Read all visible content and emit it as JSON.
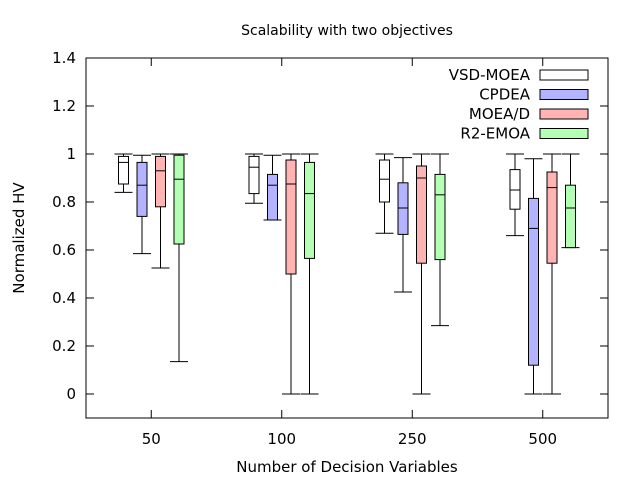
{
  "chart_data": {
    "type": "boxplot",
    "title": "Scalability with two objectives",
    "xlabel": "Number of Decision Variables",
    "ylabel": "Normalized HV",
    "ylim": [
      -0.1,
      1.4
    ],
    "yticks": [
      "0",
      "0.2",
      "0.4",
      "0.6",
      "0.8",
      "1",
      "1.2",
      "1.4"
    ],
    "ytick_values": [
      0,
      0.2,
      0.4,
      0.6,
      0.8,
      1,
      1.2,
      1.4
    ],
    "categories": [
      "50",
      "100",
      "250",
      "500"
    ],
    "legend_position": "top-right",
    "series": [
      {
        "name": "VSD-MOEA",
        "color": "#ffffff",
        "boxes": [
          {
            "min": 0.84,
            "q1": 0.875,
            "median": 0.965,
            "q3": 0.99,
            "max": 1.0
          },
          {
            "min": 0.795,
            "q1": 0.835,
            "median": 0.945,
            "q3": 0.99,
            "max": 1.0
          },
          {
            "min": 0.67,
            "q1": 0.8,
            "median": 0.895,
            "q3": 0.975,
            "max": 1.0
          },
          {
            "min": 0.66,
            "q1": 0.77,
            "median": 0.85,
            "q3": 0.935,
            "max": 1.0
          }
        ]
      },
      {
        "name": "CPDEA",
        "color": "#b3b3ff",
        "boxes": [
          {
            "min": 0.585,
            "q1": 0.74,
            "median": 0.87,
            "q3": 0.965,
            "max": 0.995
          },
          {
            "min": 0.725,
            "q1": 0.725,
            "median": 0.87,
            "q3": 0.915,
            "max": 0.995
          },
          {
            "min": 0.425,
            "q1": 0.665,
            "median": 0.775,
            "q3": 0.88,
            "max": 0.985
          },
          {
            "min": 0.0,
            "q1": 0.12,
            "median": 0.69,
            "q3": 0.815,
            "max": 0.98
          }
        ]
      },
      {
        "name": "MOEA/D",
        "color": "#ffb3b3",
        "boxes": [
          {
            "min": 0.525,
            "q1": 0.78,
            "median": 0.93,
            "q3": 0.99,
            "max": 1.0
          },
          {
            "min": 0.0,
            "q1": 0.5,
            "median": 0.875,
            "q3": 0.975,
            "max": 1.0
          },
          {
            "min": 0.0,
            "q1": 0.545,
            "median": 0.9,
            "q3": 0.95,
            "max": 1.0
          },
          {
            "min": 0.0,
            "q1": 0.545,
            "median": 0.86,
            "q3": 0.925,
            "max": 1.0
          }
        ]
      },
      {
        "name": "R2-EMOA",
        "color": "#b3ffb3",
        "boxes": [
          {
            "min": 0.135,
            "q1": 0.625,
            "median": 0.895,
            "q3": 0.995,
            "max": 1.0
          },
          {
            "min": 0.0,
            "q1": 0.565,
            "median": 0.835,
            "q3": 0.965,
            "max": 1.0
          },
          {
            "min": 0.285,
            "q1": 0.56,
            "median": 0.83,
            "q3": 0.915,
            "max": 1.0
          },
          {
            "min": 0.61,
            "q1": 0.61,
            "median": 0.775,
            "q3": 0.87,
            "max": 1.0
          }
        ]
      }
    ]
  }
}
